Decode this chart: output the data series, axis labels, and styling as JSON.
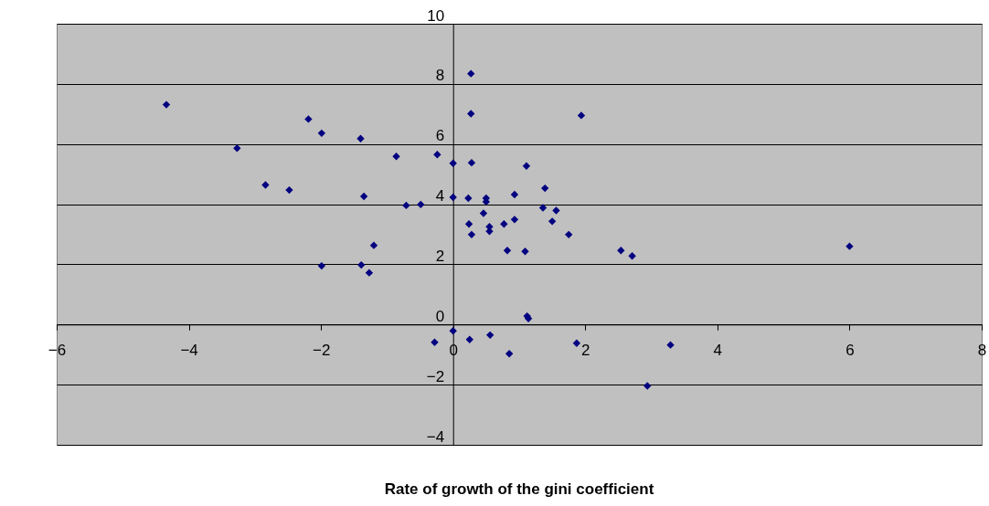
{
  "chart_data": {
    "type": "scatter",
    "xlabel": "Rate of growth of the gini coefficient",
    "x": [
      -4.34,
      -3.27,
      -2.84,
      -2.48,
      -2.19,
      -1.99,
      -1.4,
      -1.35,
      -0.86,
      -0.71,
      -0.49,
      -0.24,
      0,
      0,
      0.27,
      0.27,
      0.28,
      0.23,
      0.5,
      0.5,
      0.46,
      0.24,
      0.28,
      0.55,
      0.55,
      0.77,
      0.93,
      0.93,
      1.11,
      1.39,
      1.36,
      1.56,
      1.5,
      1.75,
      0.82,
      1.09,
      2.54,
      2.71,
      1.94,
      6.0,
      -1.99,
      -1.39,
      -1.27,
      -1.2,
      1.12,
      1.14,
      0,
      0.25,
      0.56,
      0.85,
      1.87,
      3.29,
      2.94,
      -0.28
    ],
    "series": [
      {
        "color": "#000080",
        "values": [
          7.31,
          5.86,
          4.64,
          4.47,
          6.83,
          6.36,
          6.18,
          4.26,
          5.59,
          3.96,
          3.99,
          5.65,
          5.36,
          4.23,
          8.34,
          7.01,
          5.38,
          4.2,
          4.2,
          4.08,
          3.7,
          3.34,
          2.99,
          3.25,
          3.1,
          3.34,
          3.49,
          4.32,
          5.27,
          4.53,
          3.88,
          3.79,
          3.43,
          2.99,
          2.46,
          2.43,
          2.46,
          2.28,
          6.95,
          2.6,
          1.95,
          1.98,
          1.72,
          2.63,
          0.28,
          0.2,
          -0.21,
          -0.5,
          -0.35,
          -0.97,
          -0.62,
          -0.68,
          -2.04,
          -0.59
        ]
      }
    ],
    "xlim": [
      -6,
      8
    ],
    "ylim": [
      -4,
      10
    ],
    "xticks": [
      -6,
      -4,
      -2,
      0,
      2,
      4,
      6,
      8
    ],
    "yticks": [
      -4,
      -2,
      0,
      2,
      4,
      6,
      8,
      10
    ],
    "grid": "y",
    "marker": "diamond"
  }
}
